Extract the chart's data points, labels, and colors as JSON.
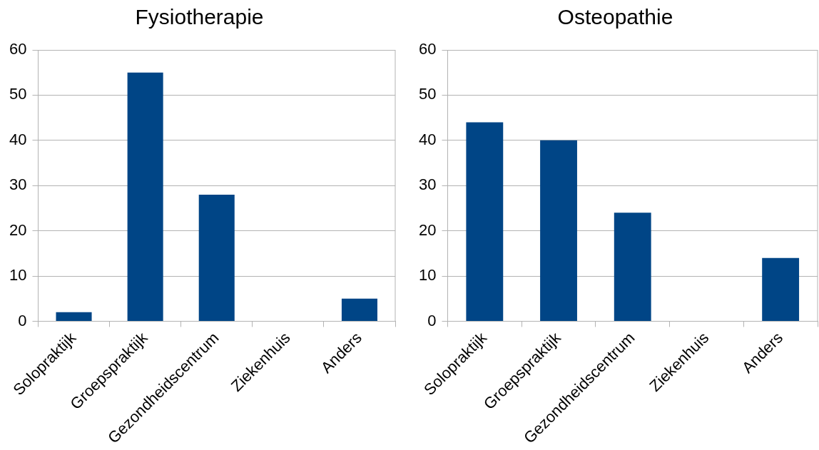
{
  "chart_data": [
    {
      "type": "bar",
      "title": "Fysiotherapie",
      "categories": [
        "Solopraktijk",
        "Groepspraktijk",
        "Gezondheidscentrum",
        "Ziekenhuis",
        "Anders"
      ],
      "values": [
        2,
        55,
        28,
        0,
        5
      ],
      "color": "#004586",
      "ylim": [
        0,
        60
      ],
      "yticks": [
        0,
        10,
        20,
        30,
        40,
        50,
        60
      ],
      "grid": "y",
      "legend": false
    },
    {
      "type": "bar",
      "title": "Osteopathie",
      "categories": [
        "Solopraktijk",
        "Groepspraktijk",
        "Gezondheidscentrum",
        "Ziekenhuis",
        "Anders"
      ],
      "values": [
        44,
        40,
        24,
        0,
        14
      ],
      "color": "#004586",
      "ylim": [
        0,
        60
      ],
      "yticks": [
        0,
        10,
        20,
        30,
        40,
        50,
        60
      ],
      "grid": "y",
      "legend": false
    }
  ]
}
